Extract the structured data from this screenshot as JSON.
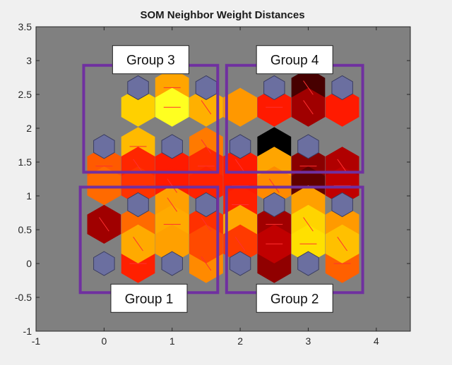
{
  "chart_data": {
    "type": "heatmap",
    "title": "SOM Neighbor Weight Distances",
    "xlim": [
      -1,
      4.5
    ],
    "ylim": [
      -1,
      3.5
    ],
    "xticks": [
      "-1",
      "0",
      "1",
      "2",
      "3",
      "4"
    ],
    "yticks": [
      "-1",
      "-0.5",
      "0",
      "0.5",
      "1",
      "1.5",
      "2",
      "2.5",
      "3",
      "3.5"
    ],
    "grid": false,
    "background_color": "#808080",
    "neuron_color": "#6b6fa0",
    "box_color": "#7030a0",
    "neurons": [
      {
        "x": 0.5,
        "y": 2.6
      },
      {
        "x": 1.5,
        "y": 2.6
      },
      {
        "x": 2.5,
        "y": 2.6
      },
      {
        "x": 3.5,
        "y": 2.6
      },
      {
        "x": 0,
        "y": 1.73
      },
      {
        "x": 1,
        "y": 1.73
      },
      {
        "x": 2,
        "y": 1.73
      },
      {
        "x": 3,
        "y": 1.73
      },
      {
        "x": 0.5,
        "y": 0.87
      },
      {
        "x": 1.5,
        "y": 0.87
      },
      {
        "x": 2.5,
        "y": 0.87
      },
      {
        "x": 3.5,
        "y": 0.87
      },
      {
        "x": 0,
        "y": 0
      },
      {
        "x": 1,
        "y": 0
      },
      {
        "x": 2,
        "y": 0
      },
      {
        "x": 3,
        "y": 0
      }
    ],
    "distance_cells": [
      {
        "x": 1.0,
        "y": 2.6,
        "color": "#ffa500"
      },
      {
        "x": 3.0,
        "y": 2.6,
        "color": "#470000"
      },
      {
        "x": 0.5,
        "y": 2.31,
        "color": "#ffd000"
      },
      {
        "x": 1.0,
        "y": 2.31,
        "color": "#ffff20"
      },
      {
        "x": 1.5,
        "y": 2.31,
        "color": "#ffb000"
      },
      {
        "x": 2.0,
        "y": 2.31,
        "color": "#ff9800"
      },
      {
        "x": 2.5,
        "y": 2.31,
        "color": "#ff1a00"
      },
      {
        "x": 3.0,
        "y": 2.31,
        "color": "#a00000"
      },
      {
        "x": 3.5,
        "y": 2.31,
        "color": "#ff1a00"
      },
      {
        "x": 0.5,
        "y": 1.73,
        "color": "#ffba00"
      },
      {
        "x": 1.5,
        "y": 1.73,
        "color": "#ff7a00"
      },
      {
        "x": 2.5,
        "y": 1.73,
        "color": "#000000"
      },
      {
        "x": 0.0,
        "y": 1.44,
        "color": "#ff5a00"
      },
      {
        "x": 0.5,
        "y": 1.44,
        "color": "#ff2600"
      },
      {
        "x": 1.0,
        "y": 1.44,
        "color": "#ff1a00"
      },
      {
        "x": 1.5,
        "y": 1.44,
        "color": "#ff2a00"
      },
      {
        "x": 2.0,
        "y": 1.44,
        "color": "#ff1a00"
      },
      {
        "x": 2.5,
        "y": 1.44,
        "color": "#ffa500"
      },
      {
        "x": 3.0,
        "y": 1.44,
        "color": "#8a0000"
      },
      {
        "x": 3.5,
        "y": 1.44,
        "color": "#b00000"
      },
      {
        "x": 0.0,
        "y": 1.15,
        "color": "#ff6a00"
      },
      {
        "x": 0.5,
        "y": 1.15,
        "color": "#ff3300"
      },
      {
        "x": 1.0,
        "y": 1.15,
        "color": "#ff1a00"
      },
      {
        "x": 1.5,
        "y": 1.15,
        "color": "#ff2200"
      },
      {
        "x": 2.0,
        "y": 1.15,
        "color": "#ff1a00"
      },
      {
        "x": 2.5,
        "y": 1.15,
        "color": "#ff8a00"
      },
      {
        "x": 3.0,
        "y": 1.15,
        "color": "#600000"
      },
      {
        "x": 3.5,
        "y": 1.15,
        "color": "#c00000"
      },
      {
        "x": 1.0,
        "y": 0.87,
        "color": "#ffa000"
      },
      {
        "x": 3.0,
        "y": 0.87,
        "color": "#ffa000"
      },
      {
        "x": 2.0,
        "y": 0.87,
        "color": "#ff2000"
      },
      {
        "x": 0.0,
        "y": 0.58,
        "color": "#a00000"
      },
      {
        "x": 0.5,
        "y": 0.58,
        "color": "#ff6a00"
      },
      {
        "x": 1.0,
        "y": 0.58,
        "color": "#ffaa00"
      },
      {
        "x": 1.5,
        "y": 0.58,
        "color": "#ff3000"
      },
      {
        "x": 2.0,
        "y": 0.58,
        "color": "#ffa800"
      },
      {
        "x": 2.5,
        "y": 0.58,
        "color": "#a00000"
      },
      {
        "x": 3.0,
        "y": 0.58,
        "color": "#ffd400"
      },
      {
        "x": 3.5,
        "y": 0.58,
        "color": "#ff9a00"
      },
      {
        "x": 0.5,
        "y": 0.0,
        "color": "#ff2000"
      },
      {
        "x": 1.5,
        "y": 0.0,
        "color": "#ff8a00"
      },
      {
        "x": 2.5,
        "y": 0.0,
        "color": "#900000"
      },
      {
        "x": 3.5,
        "y": 0.0,
        "color": "#ff6000"
      },
      {
        "x": 0.5,
        "y": 0.29,
        "color": "#ffaa00"
      },
      {
        "x": 1.5,
        "y": 0.29,
        "color": "#ff4a00"
      },
      {
        "x": 2.5,
        "y": 0.29,
        "color": "#c00000"
      },
      {
        "x": 3.5,
        "y": 0.29,
        "color": "#ffc000"
      },
      {
        "x": 1.0,
        "y": 0.29,
        "color": "#ffa000"
      },
      {
        "x": 3.0,
        "y": 0.29,
        "color": "#ffe000"
      },
      {
        "x": 2.0,
        "y": 0.29,
        "color": "#ff3a00"
      }
    ],
    "groups": [
      {
        "label": "Group 1",
        "x": [
          -0.35,
          1.67
        ],
        "y": [
          -0.43,
          1.13
        ],
        "label_pos": "below"
      },
      {
        "label": "Group 2",
        "x": [
          1.8,
          3.8
        ],
        "y": [
          -0.43,
          1.13
        ],
        "label_pos": "below"
      },
      {
        "label": "Group 3",
        "x": [
          -0.3,
          1.67
        ],
        "y": [
          1.35,
          2.93
        ],
        "label_pos": "above"
      },
      {
        "label": "Group 4",
        "x": [
          1.8,
          3.8
        ],
        "y": [
          1.35,
          2.93
        ],
        "label_pos": "above"
      }
    ]
  }
}
